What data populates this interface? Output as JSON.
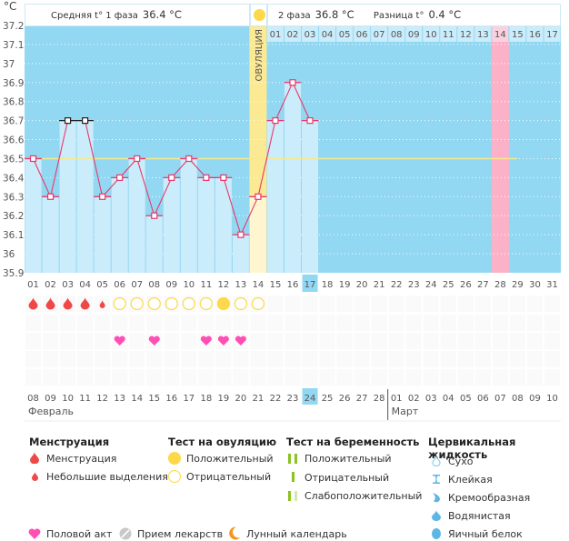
{
  "unit_label": "°C",
  "header": {
    "phase1_label": "Средняя t° 1 фаза",
    "phase1_value": "36.4 °C",
    "phase2_label": "2 фаза",
    "phase2_value": "36.8 °C",
    "diff_label": "Разница t°",
    "diff_value": "0.4 °C"
  },
  "ovulation_label": "ОВУЛЯЦИЯ",
  "colors": {
    "chart_bg": "#92d8f2",
    "bar_fill": "#cbecfa",
    "line": "#e8386b",
    "coverline": "#f5e98a",
    "ovulation": "#fbe994",
    "highlight_day": "#fbb2c8",
    "weekend_text": "#e8386b",
    "today": "#92d8f2"
  },
  "chart_data": {
    "type": "line",
    "title": "",
    "xlabel": "Cycle day",
    "ylabel": "°C",
    "ylim": [
      35.9,
      37.2
    ],
    "y_ticks": [
      "37.2",
      "37.1",
      "37",
      "36.9",
      "36.8",
      "36.7",
      "36.6",
      "36.5",
      "36.4",
      "36.3",
      "36.2",
      "36.1",
      "36",
      "35.9"
    ],
    "grid": true,
    "cycle_days": [
      "01",
      "02",
      "03",
      "04",
      "05",
      "06",
      "07",
      "08",
      "09",
      "10",
      "11",
      "12",
      "13",
      "14",
      "15",
      "16",
      "17",
      "18",
      "19",
      "20",
      "21",
      "22",
      "23",
      "24",
      "25",
      "26",
      "27",
      "28",
      "29",
      "30",
      "31"
    ],
    "top_days": [
      "01",
      "02",
      "03",
      "04",
      "05",
      "06",
      "07",
      "08",
      "09",
      "10",
      "11",
      "12",
      "13",
      "14",
      "15",
      "16",
      "17"
    ],
    "top_days_start_cycle_day": 15,
    "temperatures": [
      36.5,
      36.3,
      36.7,
      36.7,
      36.3,
      36.4,
      36.5,
      36.2,
      36.4,
      36.5,
      36.4,
      36.4,
      36.1,
      36.3,
      36.7,
      36.9,
      36.7
    ],
    "excluded_points_days": [
      3,
      4
    ],
    "coverline": 36.5,
    "ovulation_day": 14,
    "highlight_day": 28,
    "today_cycle_day": 17,
    "moon_day": 26,
    "series": [
      {
        "name": "Температура",
        "values": [
          36.5,
          36.3,
          36.7,
          36.7,
          36.3,
          36.4,
          36.5,
          36.2,
          36.4,
          36.5,
          36.4,
          36.4,
          36.1,
          36.3,
          36.7,
          36.9,
          36.7
        ]
      }
    ]
  },
  "rows": {
    "menstruation": {
      "1": "heavy",
      "2": "heavy",
      "3": "heavy",
      "4": "heavy",
      "5": "light"
    },
    "ovulation_test": {
      "6": "negative",
      "7": "negative",
      "8": "negative",
      "9": "negative",
      "10": "negative",
      "11": "negative",
      "12": "positive",
      "13": "negative",
      "14": "negative"
    },
    "intercourse_days": [
      6,
      8,
      11,
      12,
      13
    ]
  },
  "calendar": {
    "dates": [
      "08",
      "09",
      "10",
      "11",
      "12",
      "13",
      "14",
      "15",
      "16",
      "17",
      "18",
      "19",
      "20",
      "21",
      "22",
      "23",
      "24",
      "25",
      "26",
      "27",
      "28",
      "01",
      "02",
      "03",
      "04",
      "05",
      "06",
      "07",
      "08",
      "09",
      "10"
    ],
    "weekend_indexes": [
      1,
      2,
      8,
      9,
      15,
      22,
      23,
      29,
      30
    ],
    "today_index": 16,
    "month1": "Февраль",
    "month2": "Март",
    "month2_start_index": 21
  },
  "legend": {
    "menstruation": {
      "title": "Менструация",
      "items": [
        "Менструация",
        "Небольшие выделения"
      ]
    },
    "ovulation_test": {
      "title": "Тест на овуляцию",
      "items": [
        "Положительный",
        "Отрицательный"
      ]
    },
    "pregnancy_test": {
      "title": "Тест на беременность",
      "items": [
        "Положительный",
        "Отрицательный",
        "Слабоположительный"
      ]
    },
    "cervical": {
      "title": "Цервикальная жидкость",
      "items": [
        "Сухо",
        "Клейкая",
        "Кремообразная",
        "Водянистая",
        "Яичный белок"
      ]
    },
    "bottom": [
      "Половой акт",
      "Прием лекарств",
      "Лунный календарь"
    ]
  }
}
